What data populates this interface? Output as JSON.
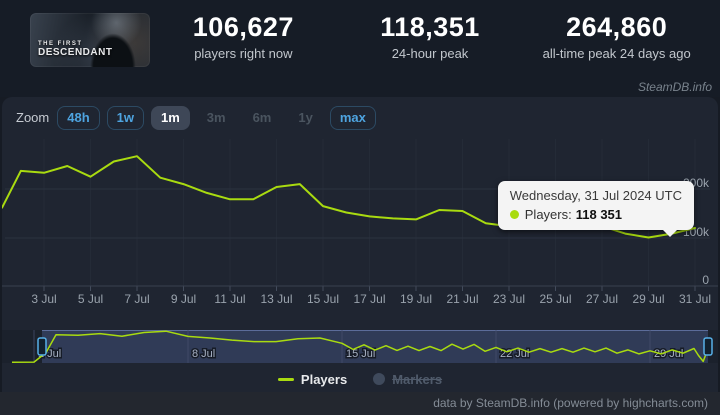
{
  "header": {
    "banner": {
      "title_line1": "THE FIRST",
      "title_line2": "DESCENDANT"
    },
    "stats": [
      {
        "value": "106,627",
        "label": "players right now"
      },
      {
        "value": "118,351",
        "label": "24-hour peak"
      },
      {
        "value": "264,860",
        "label": "all-time peak 24 days ago"
      }
    ],
    "watermark": "SteamDB.info"
  },
  "toolbar": {
    "zoom_label": "Zoom",
    "buttons": [
      {
        "label": "48h",
        "state": "normal"
      },
      {
        "label": "1w",
        "state": "normal"
      },
      {
        "label": "1m",
        "state": "selected"
      },
      {
        "label": "3m",
        "state": "disabled"
      },
      {
        "label": "6m",
        "state": "disabled"
      },
      {
        "label": "1y",
        "state": "disabled"
      },
      {
        "label": "max",
        "state": "normal"
      }
    ]
  },
  "tooltip": {
    "date": "Wednesday, 31 Jul 2024 UTC",
    "series_label": "Players:",
    "value": "118 351"
  },
  "legend": [
    {
      "label": "Players",
      "enabled": true
    },
    {
      "label": "Markers",
      "enabled": false
    }
  ],
  "footer": {
    "credit": "data by SteamDB.info (powered by highcharts.com)"
  },
  "chart_data": {
    "type": "line",
    "title": "",
    "series": [
      {
        "name": "Players",
        "color": "#a9db10",
        "x_day_of_jul_2024": [
          1.2,
          2,
          3,
          4,
          5,
          6,
          7,
          8,
          9,
          10,
          11,
          12,
          13,
          14,
          15,
          16,
          17,
          18,
          19,
          20,
          21,
          22,
          23,
          24,
          25,
          26,
          27,
          28,
          29,
          30,
          31
        ],
        "values": [
          160000,
          235000,
          231000,
          245000,
          223000,
          254000,
          264860,
          221000,
          208000,
          190000,
          177000,
          177000,
          202000,
          208000,
          163000,
          150000,
          142000,
          138000,
          136000,
          155000,
          153000,
          128000,
          122000,
          118000,
          118000,
          122000,
          122000,
          107000,
          99000,
          107000,
          118351
        ]
      }
    ],
    "x_axis": {
      "tick_labels": [
        "3 Jul",
        "5 Jul",
        "7 Jul",
        "9 Jul",
        "11 Jul",
        "13 Jul",
        "15 Jul",
        "17 Jul",
        "19 Jul",
        "21 Jul",
        "23 Jul",
        "25 Jul",
        "27 Jul",
        "29 Jul",
        "31 Jul"
      ]
    },
    "y_axis": {
      "tick_labels": [
        "200k",
        "100k",
        "0"
      ],
      "min": 0,
      "max": 300000,
      "gridline_values": [
        200000,
        100000,
        0
      ],
      "position": "right"
    },
    "navigator": {
      "tick_labels": [
        "1 Jul",
        "8 Jul",
        "15 Jul",
        "22 Jul",
        "29 Jul"
      ],
      "tick_days": [
        1,
        8,
        15,
        22,
        29
      ],
      "selected_range": "1 Jul - 31 Jul"
    },
    "grid": true,
    "legend_position": "bottom"
  }
}
